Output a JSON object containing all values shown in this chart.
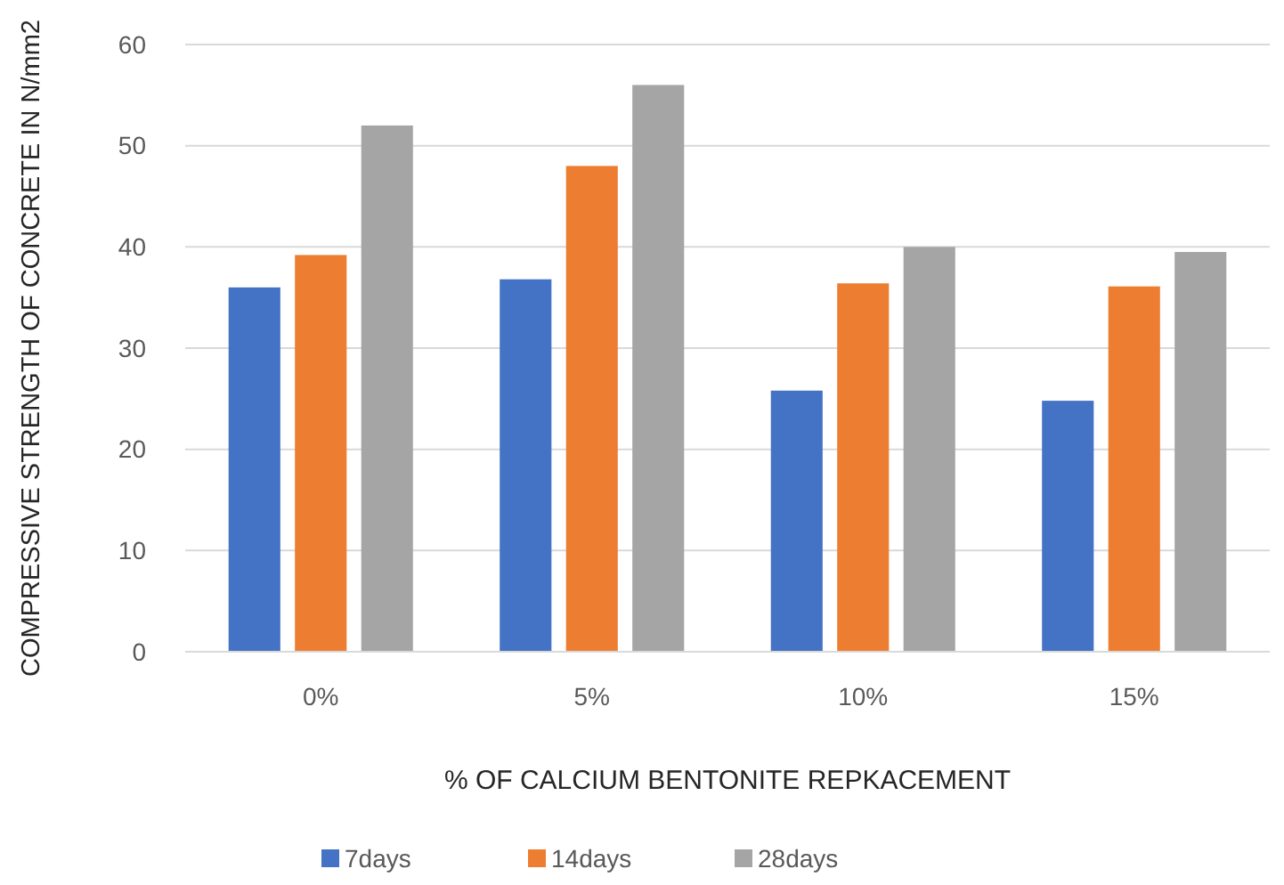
{
  "chart_data": {
    "type": "bar",
    "xlabel": "% OF CALCIUM BENTONITE REPKACEMENT",
    "ylabel": "COMPRESSIVE STRENGTH OF CONCRETE IN N/mm2",
    "categories": [
      "0%",
      "5%",
      "10%",
      "15%"
    ],
    "series": [
      {
        "name": "7days",
        "color": "#4472c4",
        "values": [
          36,
          36.8,
          25.8,
          24.8
        ]
      },
      {
        "name": "14days",
        "color": "#ed7d31",
        "values": [
          39.2,
          48,
          36.4,
          36.1
        ]
      },
      {
        "name": "28days",
        "color": "#a5a5a5",
        "values": [
          52,
          56,
          40,
          39.5
        ]
      }
    ],
    "ylim": [
      0,
      60
    ],
    "yticks": [
      0,
      10,
      20,
      30,
      40,
      50,
      60
    ],
    "grid": "y",
    "legend": "bottom"
  }
}
